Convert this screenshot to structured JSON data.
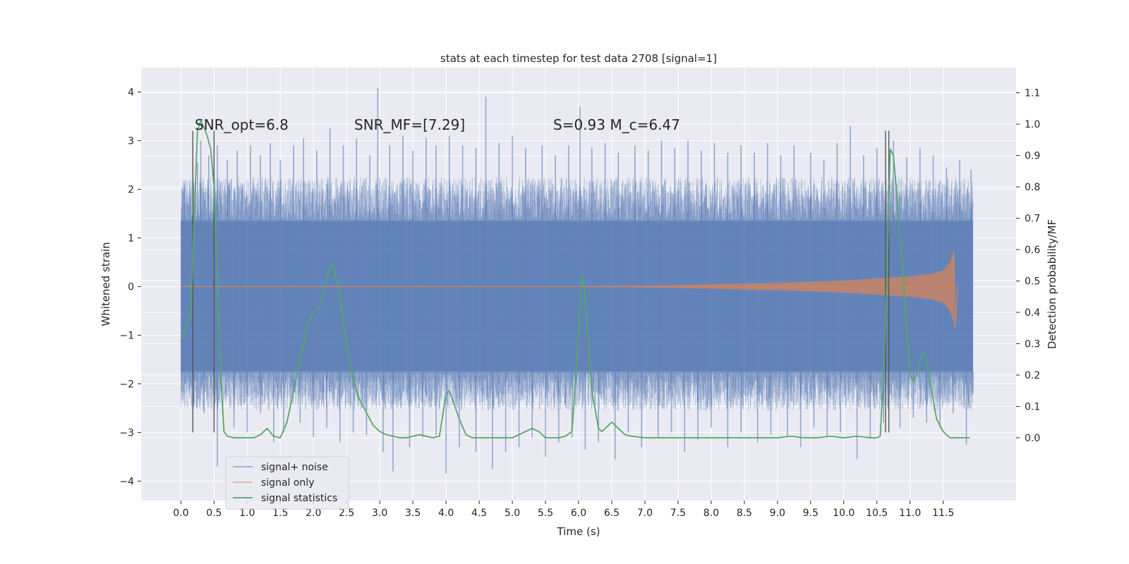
{
  "chart_data": {
    "type": "line",
    "title": "stats at each timestep for test data 2708 [signal=1]",
    "xlabel": "Time (s)",
    "ylabel_left": "Whitened strain",
    "ylabel_right": "Detection probability/MF",
    "xlim": [
      -0.6,
      12.6
    ],
    "ylim_left": [
      -4.4,
      4.5
    ],
    "ylim_right": [
      -0.2,
      1.18
    ],
    "x_ticks": [
      0.0,
      0.5,
      1.0,
      1.5,
      2.0,
      2.5,
      3.0,
      3.5,
      4.0,
      4.5,
      5.0,
      5.5,
      6.0,
      6.5,
      7.0,
      7.5,
      8.0,
      8.5,
      9.0,
      9.5,
      10.0,
      10.5,
      11.0,
      11.5
    ],
    "x_tick_labels": [
      "0.0",
      "0.5",
      "1.0",
      "1.5",
      "2.0",
      "2.5",
      "3.0",
      "3.5",
      "4.0",
      "4.5",
      "5.0",
      "5.5",
      "6.0",
      "6.5",
      "7.0",
      "7.5",
      "8.0",
      "8.5",
      "9.0",
      "9.5",
      "10.0",
      "10.5",
      "11.0",
      "11.5"
    ],
    "y_left_ticks": [
      4,
      3,
      2,
      1,
      0,
      -1,
      -2,
      -3,
      -4
    ],
    "y_left_tick_labels": [
      "4",
      "3",
      "2",
      "1",
      "0",
      "−1",
      "−2",
      "−3",
      "−4"
    ],
    "y_right_ticks": [
      1.1,
      1.0,
      0.9,
      0.8,
      0.7,
      0.6,
      0.5,
      0.4,
      0.3,
      0.2,
      0.1,
      0.0
    ],
    "y_right_tick_labels": [
      "1.1",
      "1.0",
      "0.9",
      "0.8",
      "0.7",
      "0.6",
      "0.5",
      "0.4",
      "0.3",
      "0.2",
      "0.1",
      "0.0"
    ],
    "grid": true,
    "legend_position": "lower-left",
    "annotations": [
      {
        "text": "SNR_opt=6.8",
        "x": 0.2
      },
      {
        "text": "SNR_MF=[7.29]",
        "x": 2.6
      },
      {
        "text": "S=0.93   M_c=6.47",
        "x": 5.6
      }
    ],
    "vertical_markers": [
      {
        "x": 0.18,
        "ymin": -3.0,
        "ymax": 3.2
      },
      {
        "x": 0.5,
        "ymin": -3.0,
        "ymax": 3.2
      },
      {
        "x": 10.63,
        "ymin": -3.0,
        "ymax": 3.2
      },
      {
        "x": 10.68,
        "ymin": -3.0,
        "ymax": 3.2
      }
    ],
    "series": [
      {
        "name": "signal+ noise",
        "color": "#4c72b0",
        "band": {
          "x_start": 0.0,
          "x_end": 11.95,
          "core_low": -1.75,
          "core_high": 1.35
        },
        "upper_spikes": [
          [
            0.05,
            2.05
          ],
          [
            0.25,
            2.55
          ],
          [
            0.3,
            3.0
          ],
          [
            0.42,
            2.7
          ],
          [
            0.55,
            2.9
          ],
          [
            0.7,
            2.6
          ],
          [
            0.85,
            2.8
          ],
          [
            1.05,
            2.9
          ],
          [
            1.2,
            2.7
          ],
          [
            1.35,
            2.95
          ],
          [
            1.5,
            2.6
          ],
          [
            1.7,
            2.9
          ],
          [
            1.85,
            3.05
          ],
          [
            2.05,
            2.8
          ],
          [
            2.25,
            3.25
          ],
          [
            2.45,
            2.9
          ],
          [
            2.65,
            3.05
          ],
          [
            2.85,
            2.7
          ],
          [
            2.97,
            4.08
          ],
          [
            3.15,
            2.9
          ],
          [
            3.35,
            3.1
          ],
          [
            3.5,
            2.8
          ],
          [
            3.7,
            3.05
          ],
          [
            3.85,
            2.9
          ],
          [
            4.05,
            3.1
          ],
          [
            4.25,
            2.9
          ],
          [
            4.45,
            2.85
          ],
          [
            4.6,
            3.9
          ],
          [
            4.8,
            2.95
          ],
          [
            5.0,
            3.1
          ],
          [
            5.2,
            2.85
          ],
          [
            5.45,
            2.9
          ],
          [
            5.65,
            2.7
          ],
          [
            5.85,
            2.9
          ],
          [
            6.02,
            3.7
          ],
          [
            6.2,
            2.85
          ],
          [
            6.4,
            2.95
          ],
          [
            6.6,
            2.75
          ],
          [
            6.85,
            2.9
          ],
          [
            7.05,
            2.8
          ],
          [
            7.25,
            3.0
          ],
          [
            7.45,
            2.85
          ],
          [
            7.65,
            3.0
          ],
          [
            7.85,
            2.8
          ],
          [
            8.05,
            2.95
          ],
          [
            8.25,
            2.75
          ],
          [
            8.45,
            2.9
          ],
          [
            8.65,
            2.75
          ],
          [
            8.85,
            2.95
          ],
          [
            9.05,
            2.7
          ],
          [
            9.25,
            2.9
          ],
          [
            9.5,
            2.75
          ],
          [
            9.7,
            2.6
          ],
          [
            9.9,
            2.95
          ],
          [
            10.1,
            3.3
          ],
          [
            10.3,
            2.7
          ],
          [
            10.5,
            2.85
          ],
          [
            10.75,
            3.0
          ],
          [
            10.95,
            2.65
          ],
          [
            11.15,
            2.85
          ],
          [
            11.35,
            2.7
          ],
          [
            11.55,
            2.45
          ],
          [
            11.75,
            2.6
          ],
          [
            11.92,
            2.4
          ]
        ],
        "lower_spikes": [
          [
            0.05,
            -1.75
          ],
          [
            0.2,
            -2.4
          ],
          [
            0.35,
            -2.6
          ],
          [
            0.55,
            -3.7
          ],
          [
            0.8,
            -2.9
          ],
          [
            1.0,
            -3.0
          ],
          [
            1.2,
            -2.6
          ],
          [
            1.4,
            -3.2
          ],
          [
            1.55,
            -3.0
          ],
          [
            1.8,
            -2.8
          ],
          [
            2.0,
            -3.1
          ],
          [
            2.2,
            -2.9
          ],
          [
            2.4,
            -3.2
          ],
          [
            2.6,
            -3.0
          ],
          [
            2.8,
            -3.05
          ],
          [
            3.05,
            -3.4
          ],
          [
            3.2,
            -3.8
          ],
          [
            3.45,
            -3.3
          ],
          [
            3.65,
            -3.1
          ],
          [
            3.85,
            -3.05
          ],
          [
            4.0,
            -3.85
          ],
          [
            4.2,
            -3.3
          ],
          [
            4.45,
            -3.4
          ],
          [
            4.7,
            -3.75
          ],
          [
            4.9,
            -3.4
          ],
          [
            5.1,
            -3.3
          ],
          [
            5.3,
            -3.1
          ],
          [
            5.5,
            -3.5
          ],
          [
            5.7,
            -3.2
          ],
          [
            5.9,
            -3.1
          ],
          [
            6.1,
            -3.35
          ],
          [
            6.3,
            -3.2
          ],
          [
            6.55,
            -3.55
          ],
          [
            6.75,
            -3.0
          ],
          [
            6.95,
            -3.3
          ],
          [
            7.2,
            -3.1
          ],
          [
            7.4,
            -3.0
          ],
          [
            7.6,
            -3.4
          ],
          [
            7.8,
            -3.15
          ],
          [
            8.0,
            -2.9
          ],
          [
            8.25,
            -3.3
          ],
          [
            8.45,
            -3.0
          ],
          [
            8.7,
            -3.2
          ],
          [
            8.9,
            -3.05
          ],
          [
            9.15,
            -3.1
          ],
          [
            9.35,
            -3.3
          ],
          [
            9.55,
            -2.9
          ],
          [
            9.75,
            -3.1
          ],
          [
            9.95,
            -3.0
          ],
          [
            10.2,
            -3.55
          ],
          [
            10.4,
            -3.1
          ],
          [
            10.6,
            -2.8
          ],
          [
            10.85,
            -2.9
          ],
          [
            11.05,
            -2.7
          ],
          [
            11.25,
            -2.8
          ],
          [
            11.45,
            -2.9
          ],
          [
            11.65,
            -2.6
          ],
          [
            11.85,
            -3.25
          ],
          [
            11.95,
            -2.2
          ]
        ]
      },
      {
        "name": "signal only",
        "color": "#dd8452",
        "envelope": [
          [
            0.0,
            0.01
          ],
          [
            6.0,
            0.01
          ],
          [
            7.0,
            0.02
          ],
          [
            7.5,
            0.03
          ],
          [
            8.0,
            0.045
          ],
          [
            8.5,
            0.06
          ],
          [
            9.0,
            0.075
          ],
          [
            9.5,
            0.1
          ],
          [
            10.0,
            0.125
          ],
          [
            10.5,
            0.17
          ],
          [
            11.0,
            0.21
          ],
          [
            11.3,
            0.26
          ],
          [
            11.5,
            0.33
          ],
          [
            11.6,
            0.5
          ],
          [
            11.66,
            0.75
          ]
        ],
        "tail": [
          [
            11.66,
            0.75
          ],
          [
            11.68,
            -0.85
          ],
          [
            11.72,
            0.0
          ]
        ]
      },
      {
        "name": "signal statistics",
        "color": "#55a868",
        "axis": "right",
        "x": [
          0.0,
          0.1,
          0.15,
          0.2,
          0.25,
          0.3,
          0.35,
          0.4,
          0.45,
          0.5,
          0.55,
          0.6,
          0.65,
          0.7,
          0.8,
          0.9,
          1.0,
          1.1,
          1.2,
          1.3,
          1.4,
          1.5,
          1.6,
          1.7,
          1.8,
          1.9,
          2.0,
          2.1,
          2.2,
          2.25,
          2.3,
          2.4,
          2.5,
          2.6,
          2.7,
          2.8,
          2.9,
          3.0,
          3.1,
          3.2,
          3.3,
          3.4,
          3.5,
          3.6,
          3.7,
          3.8,
          3.9,
          4.0,
          4.05,
          4.1,
          4.2,
          4.3,
          4.4,
          4.5,
          4.6,
          4.8,
          5.0,
          5.1,
          5.2,
          5.3,
          5.4,
          5.5,
          5.6,
          5.7,
          5.8,
          5.9,
          6.0,
          6.05,
          6.1,
          6.15,
          6.2,
          6.3,
          6.35,
          6.4,
          6.5,
          6.6,
          6.7,
          6.8,
          7.0,
          7.5,
          8.0,
          8.5,
          9.0,
          9.2,
          9.4,
          9.6,
          9.8,
          10.0,
          10.2,
          10.4,
          10.5,
          10.55,
          10.6,
          10.65,
          10.7,
          10.75,
          10.8,
          10.9,
          11.0,
          11.05,
          11.1,
          11.15,
          11.2,
          11.25,
          11.3,
          11.4,
          11.5,
          11.6,
          11.8,
          11.9
        ],
        "values": [
          0.31,
          0.37,
          0.39,
          0.7,
          0.98,
          1.01,
          0.99,
          0.96,
          0.92,
          0.8,
          0.5,
          0.2,
          0.02,
          0.005,
          0.0,
          0.0,
          0.0,
          0.0,
          0.01,
          0.03,
          0.005,
          0.0,
          0.05,
          0.15,
          0.25,
          0.35,
          0.4,
          0.42,
          0.5,
          0.55,
          0.55,
          0.45,
          0.3,
          0.18,
          0.12,
          0.08,
          0.04,
          0.02,
          0.01,
          0.005,
          0.0,
          0.0,
          0.005,
          0.01,
          0.005,
          0.0,
          0.005,
          0.14,
          0.15,
          0.12,
          0.06,
          0.01,
          0.0,
          0.0,
          0.0,
          0.0,
          0.0,
          0.01,
          0.02,
          0.03,
          0.02,
          0.0,
          0.0,
          0.0,
          0.005,
          0.02,
          0.33,
          0.52,
          0.45,
          0.3,
          0.15,
          0.03,
          0.02,
          0.03,
          0.05,
          0.03,
          0.01,
          0.005,
          0.0,
          0.0,
          0.0,
          0.0,
          0.0,
          0.005,
          0.0,
          0.0,
          0.005,
          0.0,
          0.005,
          0.0,
          0.0,
          0.005,
          0.2,
          0.5,
          0.92,
          0.9,
          0.78,
          0.5,
          0.2,
          0.18,
          0.2,
          0.25,
          0.27,
          0.25,
          0.18,
          0.06,
          0.02,
          0.0,
          0.0,
          0.0
        ]
      }
    ]
  }
}
